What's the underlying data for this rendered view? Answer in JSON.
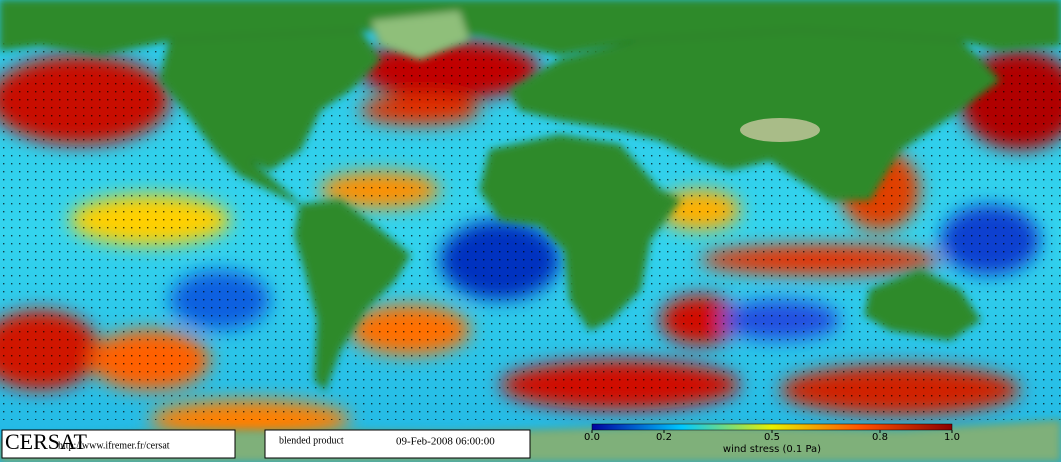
{
  "footer": {
    "logo": "CERSAT",
    "url": "http://www.ifremer.fr/cersat",
    "product": "blended product",
    "timestamp": "09-Feb-2008 06:00:00"
  },
  "colorbar": {
    "label": "wind stress (0.1 Pa)",
    "lim": [
      0,
      1
    ],
    "ticks": [
      {
        "value": 0,
        "label": "0.0"
      },
      0.2,
      0.5,
      0.8,
      {
        "value": 1,
        "label": "1.0"
      }
    ]
  }
}
